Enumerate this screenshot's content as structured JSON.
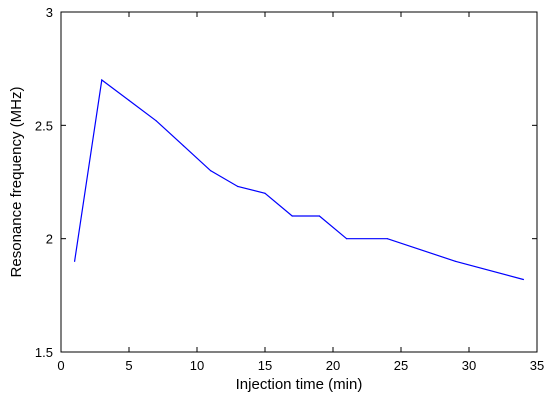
{
  "chart_data": {
    "type": "line",
    "xlabel": "Injection time (min)",
    "ylabel": "Resonance frequency (MHz)",
    "xlim": [
      0,
      35
    ],
    "ylim": [
      1.5,
      3
    ],
    "xticks": [
      "0",
      "5",
      "10",
      "15",
      "20",
      "25",
      "30",
      "35"
    ],
    "yticks": [
      "1.5",
      "2",
      "2.5",
      "3"
    ],
    "grid": false,
    "series": [
      {
        "color": "#0000ff",
        "x": [
          1,
          3,
          5,
          7,
          9,
          11,
          13,
          15,
          17,
          19,
          21,
          24,
          29,
          34
        ],
        "y": [
          1.9,
          2.7,
          2.61,
          2.52,
          2.41,
          2.3,
          2.23,
          2.2,
          2.1,
          2.1,
          2.0,
          2.0,
          1.9,
          1.82
        ]
      }
    ]
  }
}
